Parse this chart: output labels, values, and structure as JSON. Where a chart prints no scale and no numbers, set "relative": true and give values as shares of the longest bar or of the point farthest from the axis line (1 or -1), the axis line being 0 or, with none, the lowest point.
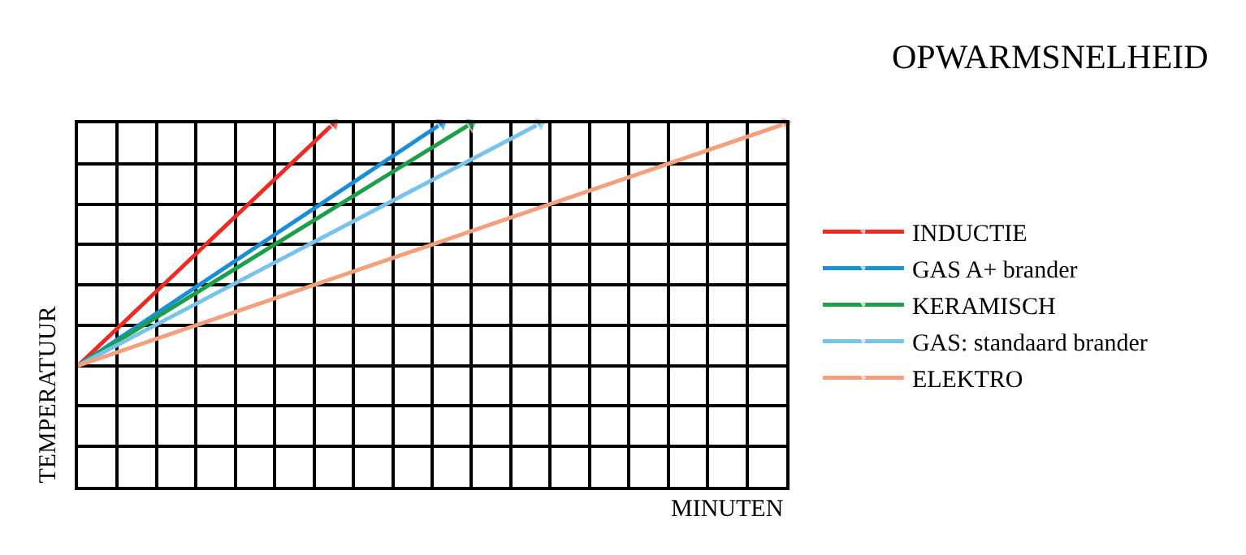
{
  "chart_data": {
    "type": "line",
    "title": "OPWARMSNELHEID",
    "annotations": [
      "MINUTEN"
    ],
    "ylabel": "TEMPERATUUR",
    "relative": true,
    "categories": [
      null,
      null,
      null,
      null,
      null,
      null,
      null,
      null,
      null,
      null,
      null,
      null,
      null,
      null,
      null,
      null,
      null,
      null,
      null,
      null,
      null,
      null,
      null,
      null,
      null,
      null,
      null,
      null,
      null,
      null,
      null,
      null,
      null,
      null,
      null,
      null,
      null,
      null,
      null,
      null,
      null,
      null,
      null,
      null,
      null,
      null,
      null,
      null,
      null,
      null,
      null,
      null,
      null,
      null,
      null,
      null,
      null,
      null,
      null,
      null,
      null,
      null,
      null,
      null,
      null,
      null,
      null,
      null,
      null,
      null,
      null,
      null,
      null
    ],
    "tick_labels": false,
    "grid": true,
    "legend": "right",
    "line_style": "solid",
    "series": [
      {
        "name": "INDUCTIE",
        "color": "#ee2a24",
        "values": [
          0,
          null,
          null,
          null,
          null,
          null,
          null,
          null,
          null,
          null,
          null,
          null,
          null,
          null,
          null,
          null,
          null,
          null,
          null,
          null,
          null,
          null,
          null,
          null,
          null,
          null,
          1,
          null,
          null,
          null,
          null,
          null,
          null,
          null,
          null,
          null,
          null,
          null,
          null,
          null,
          null,
          null,
          null,
          null,
          null,
          null,
          null,
          null,
          null,
          null,
          null,
          null,
          null,
          null,
          null,
          null,
          null,
          null,
          null,
          null,
          null,
          null,
          null,
          null,
          null,
          null,
          null,
          null,
          null,
          null,
          null,
          null,
          null
        ]
      },
      {
        "name": "GAS A+ brander",
        "color": "#1a8fd6",
        "values": [
          0,
          null,
          null,
          null,
          null,
          null,
          null,
          null,
          null,
          null,
          null,
          null,
          null,
          null,
          null,
          null,
          null,
          null,
          null,
          null,
          null,
          null,
          null,
          null,
          null,
          null,
          null,
          null,
          null,
          null,
          null,
          null,
          null,
          null,
          null,
          null,
          null,
          1,
          null,
          null,
          null,
          null,
          null,
          null,
          null,
          null,
          null,
          null,
          null,
          null,
          null,
          null,
          null,
          null,
          null,
          null,
          null,
          null,
          null,
          null,
          null,
          null,
          null,
          null,
          null,
          null,
          null,
          null,
          null,
          null,
          null,
          null,
          null
        ]
      },
      {
        "name": "KERAMISCH",
        "color": "#1e9e48",
        "values": [
          0,
          null,
          null,
          null,
          null,
          null,
          null,
          null,
          null,
          null,
          null,
          null,
          null,
          null,
          null,
          null,
          null,
          null,
          null,
          null,
          null,
          null,
          null,
          null,
          null,
          null,
          null,
          null,
          null,
          null,
          null,
          null,
          null,
          null,
          null,
          null,
          null,
          null,
          null,
          null,
          1,
          null,
          null,
          null,
          null,
          null,
          null,
          null,
          null,
          null,
          null,
          null,
          null,
          null,
          null,
          null,
          null,
          null,
          null,
          null,
          null,
          null,
          null,
          null,
          null,
          null,
          null,
          null,
          null,
          null,
          null,
          null,
          null
        ]
      },
      {
        "name": "GAS: standaard brander",
        "color": "#78c3ee",
        "values": [
          0,
          null,
          null,
          null,
          null,
          null,
          null,
          null,
          null,
          null,
          null,
          null,
          null,
          null,
          null,
          null,
          null,
          null,
          null,
          null,
          null,
          null,
          null,
          null,
          null,
          null,
          null,
          null,
          null,
          null,
          null,
          null,
          null,
          null,
          null,
          null,
          null,
          null,
          null,
          null,
          null,
          null,
          null,
          null,
          null,
          null,
          null,
          1,
          null,
          null,
          null,
          null,
          null,
          null,
          null,
          null,
          null,
          null,
          null,
          null,
          null,
          null,
          null,
          null,
          null,
          null,
          null,
          null,
          null,
          null,
          null,
          null,
          null
        ]
      },
      {
        "name": "ELEKTRO",
        "color": "#f5a07c",
        "values": [
          0,
          null,
          null,
          null,
          null,
          null,
          null,
          null,
          null,
          null,
          null,
          null,
          null,
          null,
          null,
          null,
          null,
          null,
          null,
          null,
          null,
          null,
          null,
          null,
          null,
          null,
          null,
          null,
          null,
          null,
          null,
          null,
          null,
          null,
          null,
          null,
          null,
          null,
          null,
          null,
          null,
          null,
          null,
          null,
          null,
          null,
          null,
          null,
          null,
          null,
          null,
          null,
          null,
          null,
          null,
          null,
          null,
          null,
          null,
          null,
          null,
          null,
          null,
          null,
          null,
          null,
          null,
          null,
          null,
          null,
          null,
          null,
          1
        ]
      }
    ]
  }
}
